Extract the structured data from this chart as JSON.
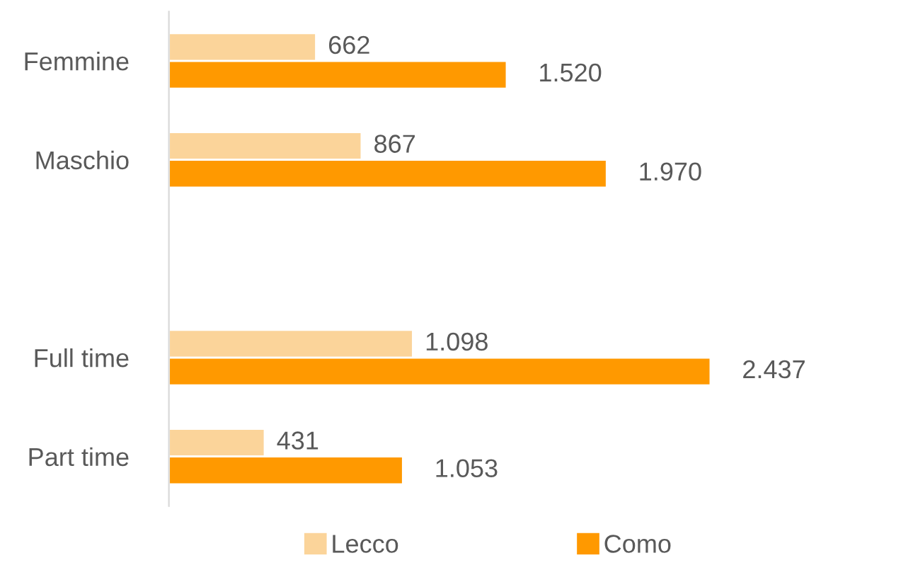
{
  "chart_data": {
    "type": "bar",
    "orientation": "horizontal",
    "categories": [
      "Femmine",
      "Maschio",
      null,
      "Full time",
      "Part time"
    ],
    "series": [
      {
        "name": "Lecco",
        "color": "#fbd49a",
        "values": [
          662,
          867,
          null,
          1098,
          431
        ],
        "value_labels": [
          "662",
          "867",
          null,
          "1.098",
          "431"
        ]
      },
      {
        "name": "Como",
        "color": "#ff9900",
        "values": [
          1520,
          1970,
          null,
          2437,
          1053
        ],
        "value_labels": [
          "1.520",
          "1.970",
          null,
          "2.437",
          "1.053"
        ]
      }
    ],
    "legend": "bottom",
    "grid": false,
    "tick_labels": "y"
  }
}
